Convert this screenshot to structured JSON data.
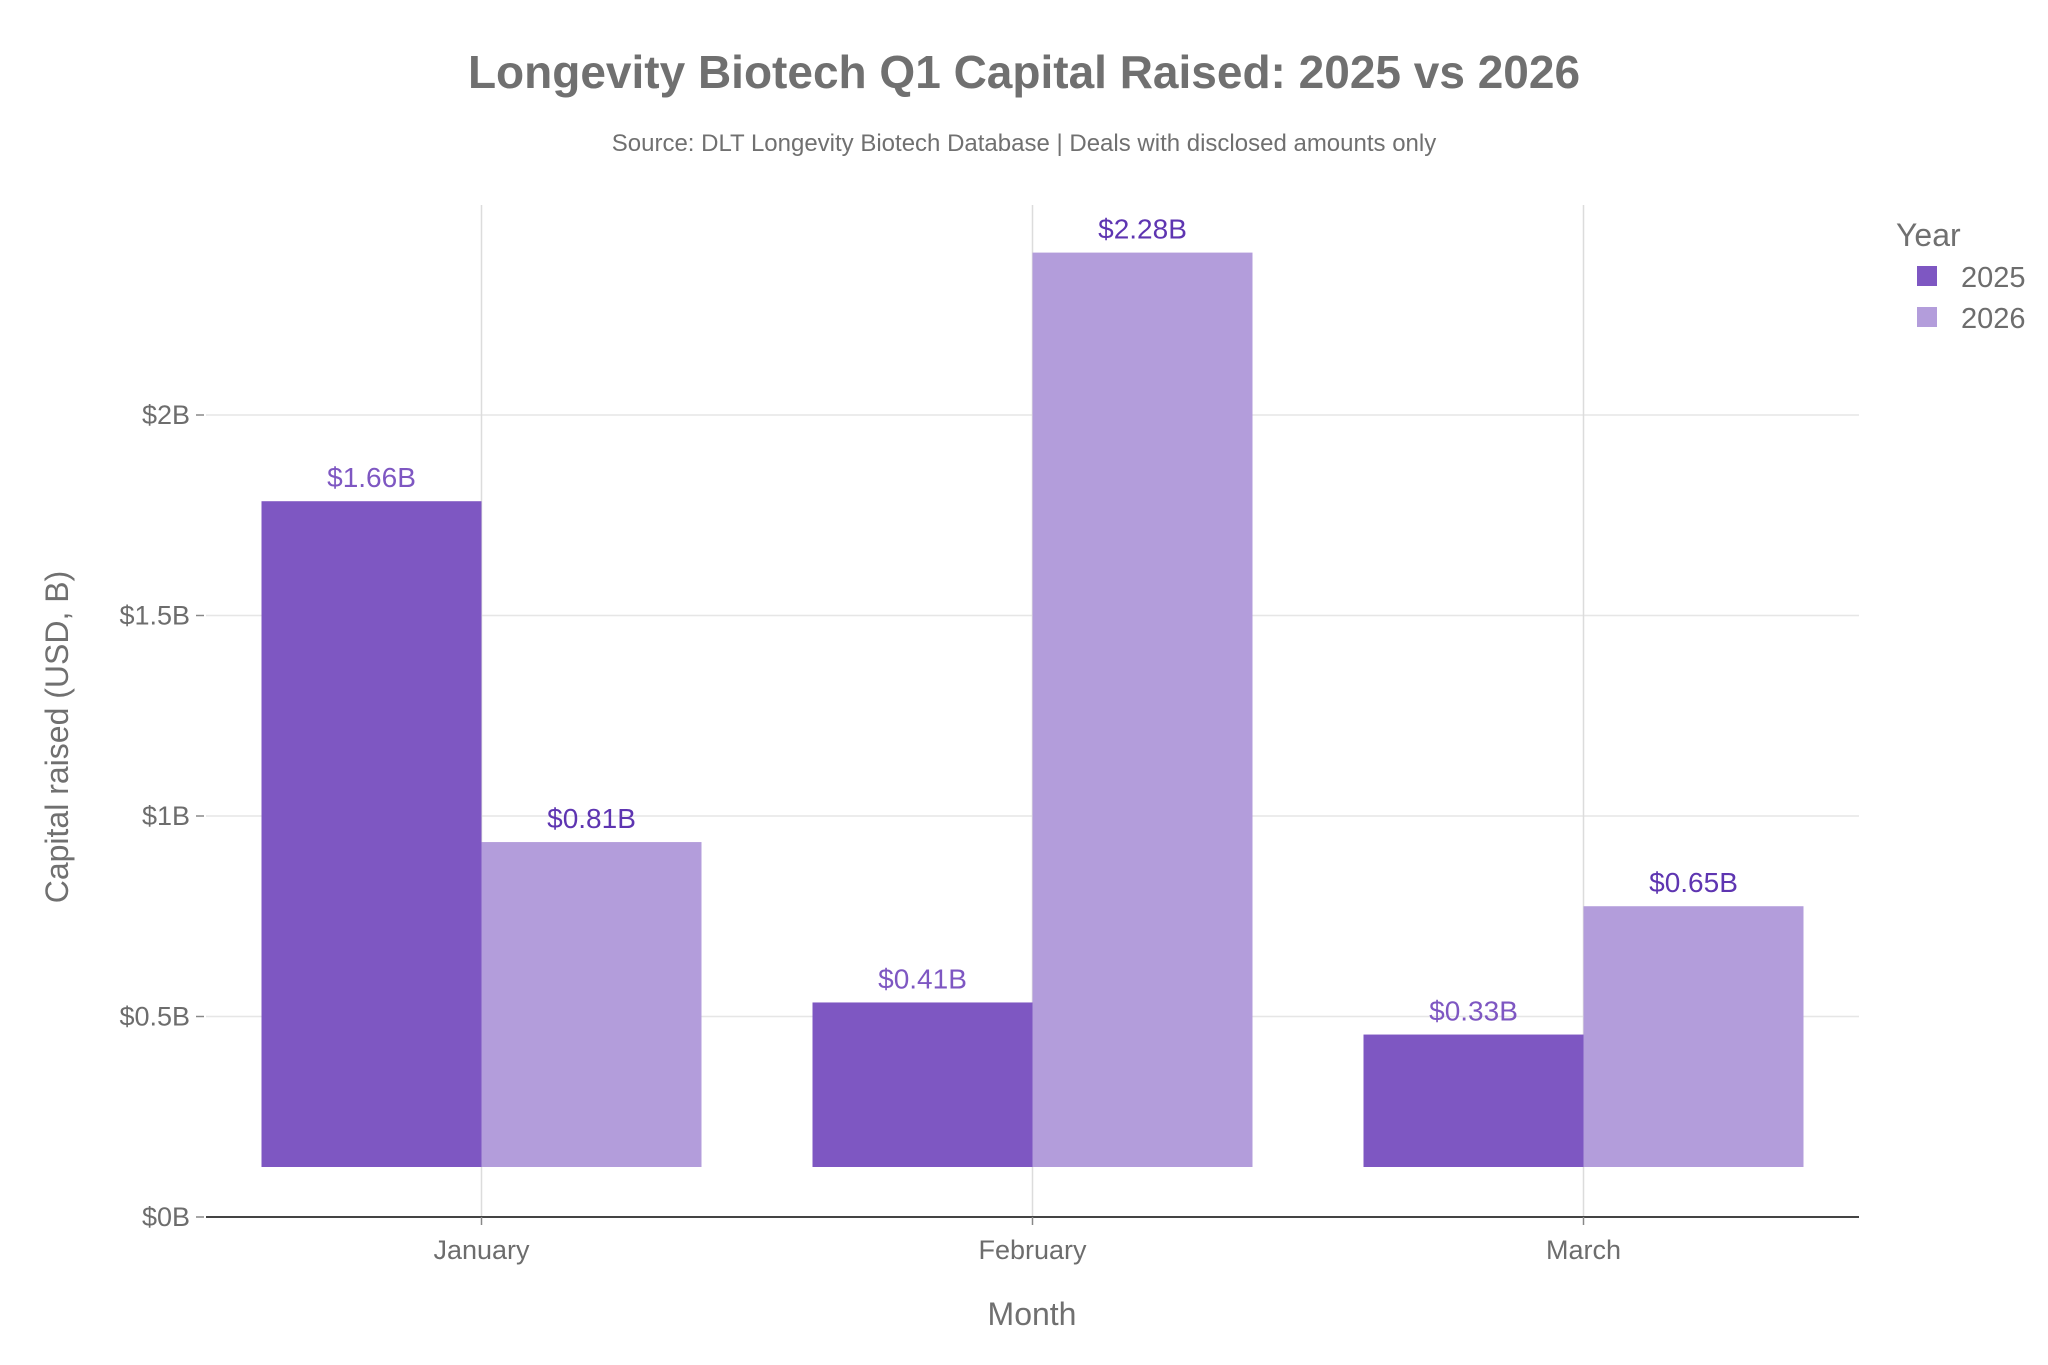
{
  "chart_data": {
    "type": "bar",
    "title": "Longevity Biotech Q1 Capital Raised: 2025 vs 2026",
    "subtitle": "Source: DLT Longevity Biotech Database | Deals with disclosed amounts only",
    "xlabel": "Month",
    "ylabel": "Capital raised (USD, B)",
    "categories": [
      "January",
      "February",
      "March"
    ],
    "series": [
      {
        "name": "2025",
        "values": [
          1.66,
          0.41,
          0.33
        ],
        "labels": [
          "$1.66B",
          "$0.41B",
          "$0.33B"
        ],
        "color": "#7e57c2",
        "label_color": "#7e57c2"
      },
      {
        "name": "2026",
        "values": [
          0.81,
          2.28,
          0.65
        ],
        "labels": [
          "$0.81B",
          "$2.28B",
          "$0.65B"
        ],
        "color": "#b39ddb",
        "label_color": "#5e35b1"
      }
    ],
    "yticks": [
      {
        "value": 0,
        "label": "$0B"
      },
      {
        "value": 0.5,
        "label": "$0.5B"
      },
      {
        "value": 1,
        "label": "$1B"
      },
      {
        "value": 1.5,
        "label": "$1.5B"
      },
      {
        "value": 2,
        "label": "$2B"
      }
    ],
    "ylim": [
      0,
      2.6
    ],
    "legend": {
      "title": "Year",
      "position": "top-right"
    },
    "grid": true
  }
}
